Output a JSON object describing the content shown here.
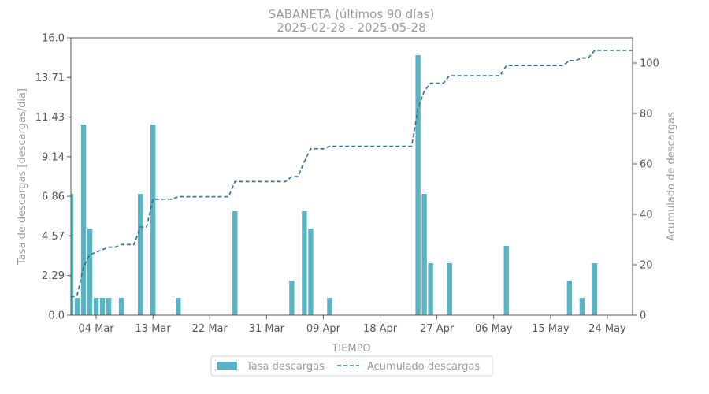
{
  "chart_data": {
    "type": "bar",
    "title": "SABANETA (últimos 90 días)",
    "subtitle": "2025-02-28  -  2025-05-28",
    "xlabel": "TIEMPO",
    "ylabel_left": "Tasa de descargas [descargas/día]",
    "ylabel_right": "Acumulado de descargas",
    "x_range": [
      "2025-02-28",
      "2025-05-28"
    ],
    "ylim_left": [
      0,
      16
    ],
    "ylim_right": [
      0,
      110
    ],
    "yticks_left": [
      "0.0",
      "2.29",
      "4.57",
      "6.86",
      "9.14",
      "11.43",
      "13.71",
      "16.0"
    ],
    "yticks_right": [
      "0",
      "20",
      "40",
      "60",
      "80",
      "100"
    ],
    "xticks": [
      {
        "date": "2025-03-04",
        "label": "04 Mar"
      },
      {
        "date": "2025-03-13",
        "label": "13 Mar"
      },
      {
        "date": "2025-03-22",
        "label": "22 Mar"
      },
      {
        "date": "2025-03-31",
        "label": "31 Mar"
      },
      {
        "date": "2025-04-09",
        "label": "09 Apr"
      },
      {
        "date": "2025-04-18",
        "label": "18 Apr"
      },
      {
        "date": "2025-04-27",
        "label": "27 Apr"
      },
      {
        "date": "2025-05-06",
        "label": "06 May"
      },
      {
        "date": "2025-05-15",
        "label": "15 May"
      },
      {
        "date": "2025-05-24",
        "label": "24 May"
      }
    ],
    "series": [
      {
        "name": "Tasa descargas",
        "kind": "bar",
        "color": "#56b4c4",
        "points": [
          {
            "date": "2025-02-28",
            "value": 7
          },
          {
            "date": "2025-03-01",
            "value": 1
          },
          {
            "date": "2025-03-02",
            "value": 11
          },
          {
            "date": "2025-03-03",
            "value": 5
          },
          {
            "date": "2025-03-04",
            "value": 1
          },
          {
            "date": "2025-03-05",
            "value": 1
          },
          {
            "date": "2025-03-06",
            "value": 1
          },
          {
            "date": "2025-03-08",
            "value": 1
          },
          {
            "date": "2025-03-11",
            "value": 7
          },
          {
            "date": "2025-03-13",
            "value": 11
          },
          {
            "date": "2025-03-17",
            "value": 1
          },
          {
            "date": "2025-03-26",
            "value": 6
          },
          {
            "date": "2025-04-04",
            "value": 2
          },
          {
            "date": "2025-04-06",
            "value": 6
          },
          {
            "date": "2025-04-07",
            "value": 5
          },
          {
            "date": "2025-04-10",
            "value": 1
          },
          {
            "date": "2025-04-24",
            "value": 15
          },
          {
            "date": "2025-04-25",
            "value": 7
          },
          {
            "date": "2025-04-26",
            "value": 3
          },
          {
            "date": "2025-04-29",
            "value": 3
          },
          {
            "date": "2025-05-08",
            "value": 4
          },
          {
            "date": "2025-05-18",
            "value": 2
          },
          {
            "date": "2025-05-20",
            "value": 1
          },
          {
            "date": "2025-05-22",
            "value": 3
          }
        ]
      },
      {
        "name": "Acumulado descargas",
        "kind": "line",
        "style": "dashed",
        "color": "#2c7494",
        "points": [
          {
            "date": "2025-02-28",
            "value": 7
          },
          {
            "date": "2025-03-01",
            "value": 8
          },
          {
            "date": "2025-03-02",
            "value": 19
          },
          {
            "date": "2025-03-03",
            "value": 24
          },
          {
            "date": "2025-03-04",
            "value": 25
          },
          {
            "date": "2025-03-05",
            "value": 26
          },
          {
            "date": "2025-03-06",
            "value": 27
          },
          {
            "date": "2025-03-07",
            "value": 27
          },
          {
            "date": "2025-03-08",
            "value": 28
          },
          {
            "date": "2025-03-10",
            "value": 28
          },
          {
            "date": "2025-03-11",
            "value": 35
          },
          {
            "date": "2025-03-12",
            "value": 35
          },
          {
            "date": "2025-03-13",
            "value": 46
          },
          {
            "date": "2025-03-16",
            "value": 46
          },
          {
            "date": "2025-03-17",
            "value": 47
          },
          {
            "date": "2025-03-25",
            "value": 47
          },
          {
            "date": "2025-03-26",
            "value": 53
          },
          {
            "date": "2025-04-03",
            "value": 53
          },
          {
            "date": "2025-04-04",
            "value": 55
          },
          {
            "date": "2025-04-05",
            "value": 55
          },
          {
            "date": "2025-04-06",
            "value": 61
          },
          {
            "date": "2025-04-07",
            "value": 66
          },
          {
            "date": "2025-04-09",
            "value": 66
          },
          {
            "date": "2025-04-10",
            "value": 67
          },
          {
            "date": "2025-04-23",
            "value": 67
          },
          {
            "date": "2025-04-24",
            "value": 82
          },
          {
            "date": "2025-04-25",
            "value": 89
          },
          {
            "date": "2025-04-26",
            "value": 92
          },
          {
            "date": "2025-04-28",
            "value": 92
          },
          {
            "date": "2025-04-29",
            "value": 95
          },
          {
            "date": "2025-05-07",
            "value": 95
          },
          {
            "date": "2025-05-08",
            "value": 99
          },
          {
            "date": "2025-05-17",
            "value": 99
          },
          {
            "date": "2025-05-18",
            "value": 101
          },
          {
            "date": "2025-05-19",
            "value": 101
          },
          {
            "date": "2025-05-20",
            "value": 102
          },
          {
            "date": "2025-05-21",
            "value": 102
          },
          {
            "date": "2025-05-22",
            "value": 105
          },
          {
            "date": "2025-05-28",
            "value": 105
          }
        ]
      }
    ],
    "legend": {
      "placement": "bottom-center",
      "items": [
        "Tasa descargas",
        "Acumulado descargas"
      ]
    },
    "grid": false
  }
}
